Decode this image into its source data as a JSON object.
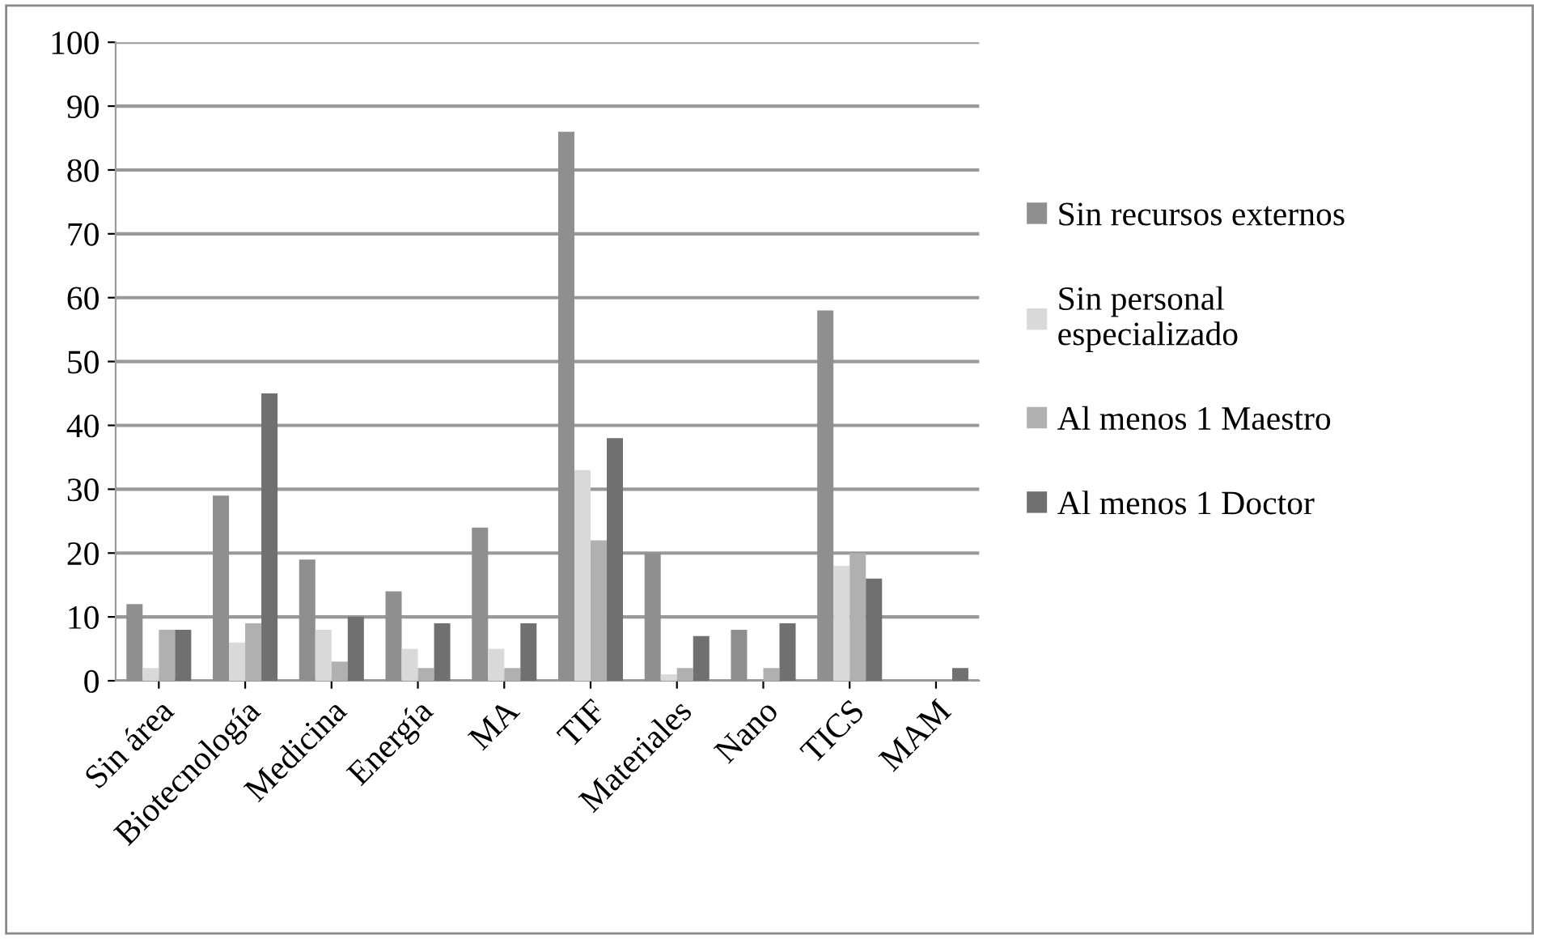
{
  "chart_data": {
    "type": "bar",
    "categories": [
      "Sin área",
      "Biotecnología",
      "Medicina",
      "Energía",
      "MA",
      "TIF",
      "Materiales",
      "Nano",
      "TICS",
      "MAM"
    ],
    "series": [
      {
        "name": "Sin recursos externos",
        "color": "#8f8f8f",
        "values": [
          12,
          29,
          19,
          14,
          24,
          86,
          20,
          8,
          58,
          0
        ]
      },
      {
        "name": "Sin personal especializado",
        "color": "#d9d9d9",
        "values": [
          2,
          6,
          8,
          5,
          5,
          33,
          1,
          0,
          18,
          0
        ]
      },
      {
        "name": "Al menos 1 Maestro",
        "color": "#b0b0b0",
        "values": [
          8,
          9,
          3,
          2,
          2,
          22,
          2,
          2,
          20,
          0
        ]
      },
      {
        "name": "Al menos 1 Doctor",
        "color": "#707070",
        "values": [
          8,
          45,
          10,
          9,
          9,
          38,
          7,
          9,
          16,
          2
        ]
      }
    ],
    "ylim": [
      0,
      100
    ],
    "yticks": [
      0,
      10,
      20,
      30,
      40,
      50,
      60,
      70,
      80,
      90,
      100
    ],
    "grid": "y",
    "legend": "right"
  }
}
